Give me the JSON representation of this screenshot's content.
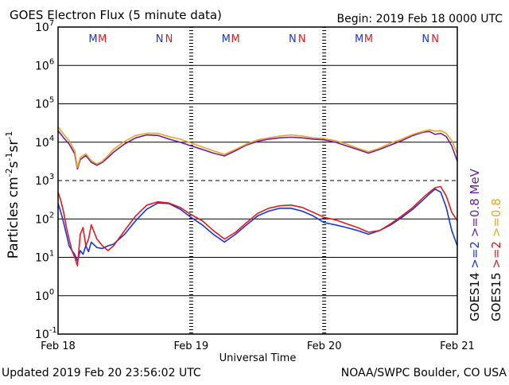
{
  "chart_data": {
    "type": "line",
    "title": "GOES Electron Flux (5 minute data)",
    "begin_label": "Begin: 2019 Feb 18 0000 UTC",
    "updated_label": "Updated 2019 Feb 20 23:56:02 UTC",
    "credit_label": "NOAA/SWPC Boulder, CO USA",
    "xlabel": "Universal Time",
    "ylabel_parts": [
      "Particles cm",
      "-2",
      "s",
      "-1",
      "sr",
      "-1"
    ],
    "xlim": [
      0,
      72
    ],
    "ylim_log10": [
      -1,
      7
    ],
    "y_scale": "log",
    "y_ticks": [
      {
        "exp": 7,
        "base": "10",
        "sup": "7"
      },
      {
        "exp": 6,
        "base": "10",
        "sup": "6"
      },
      {
        "exp": 5,
        "base": "10",
        "sup": "5"
      },
      {
        "exp": 4,
        "base": "10",
        "sup": "4"
      },
      {
        "exp": 3,
        "base": "10",
        "sup": "3"
      },
      {
        "exp": 2,
        "base": "10",
        "sup": "2"
      },
      {
        "exp": 1,
        "base": "10",
        "sup": "1"
      },
      {
        "exp": 0,
        "base": "10",
        "sup": "0"
      },
      {
        "exp": -1,
        "base": "10",
        "sup": "-1"
      }
    ],
    "x_ticks": [
      {
        "hour": 0,
        "label": "Feb 18"
      },
      {
        "hour": 24,
        "label": "Feb 19"
      },
      {
        "hour": 48,
        "label": "Feb 20"
      },
      {
        "hour": 72,
        "label": "Feb 21"
      }
    ],
    "gridlines_log10": [
      6,
      5,
      4,
      2,
      1,
      0
    ],
    "dashed_threshold_log10": 3,
    "markers": [
      {
        "hour": 6.3,
        "label": "M",
        "color": "#1a33e6"
      },
      {
        "hour": 8.0,
        "label": "M",
        "color": "#e61a1a"
      },
      {
        "hour": 18.3,
        "label": "N",
        "color": "#1a33e6"
      },
      {
        "hour": 20.0,
        "label": "N",
        "color": "#e61a1a"
      },
      {
        "hour": 30.3,
        "label": "M",
        "color": "#1a33e6"
      },
      {
        "hour": 32.0,
        "label": "M",
        "color": "#e61a1a"
      },
      {
        "hour": 42.3,
        "label": "N",
        "color": "#1a33e6"
      },
      {
        "hour": 44.0,
        "label": "N",
        "color": "#e61a1a"
      },
      {
        "hour": 54.3,
        "label": "M",
        "color": "#1a33e6"
      },
      {
        "hour": 56.0,
        "label": "M",
        "color": "#e61a1a"
      },
      {
        "hour": 66.3,
        "label": "N",
        "color": "#1a33e6"
      },
      {
        "hour": 68.0,
        "label": "N",
        "color": "#e61a1a"
      }
    ],
    "legend": {
      "goes14": {
        "label": "GOES14",
        "high": ">=2",
        "low": ">=0.8",
        "unit": "MeV"
      },
      "goes15": {
        "label": "GOES15",
        "high": ">=2",
        "low": ">=0.8",
        "unit": "MeV"
      },
      "colors": {
        "label": "#000000",
        "high14": "#1a33e6",
        "high15": "#e61a1a",
        "low14": "#6a1fa8",
        "low15": "#f2a21b",
        "unit": "#6a1fa8"
      }
    },
    "series": [
      {
        "name": "GOES14 >=0.8 MeV",
        "color": "#6a1fa8",
        "x": [
          0,
          1,
          2,
          3,
          3.5,
          4,
          5,
          6,
          7,
          8,
          9,
          10,
          12,
          14,
          16,
          18,
          20,
          22,
          24,
          26,
          28,
          30,
          32,
          34,
          36,
          38,
          40,
          42,
          44,
          46,
          48,
          50,
          52,
          54,
          56,
          58,
          60,
          62,
          64,
          66,
          67,
          68,
          69,
          70,
          71,
          72
        ],
        "values": [
          20000,
          13000,
          9000,
          5000,
          2000,
          3500,
          4500,
          3000,
          2500,
          3000,
          4000,
          5500,
          9000,
          13000,
          15500,
          15000,
          12000,
          10000,
          8000,
          6500,
          5200,
          4400,
          6000,
          8500,
          10500,
          12000,
          13000,
          13500,
          13000,
          12000,
          11500,
          10000,
          8000,
          6500,
          5200,
          6500,
          8500,
          11000,
          15000,
          18500,
          19000,
          16000,
          17000,
          14000,
          8000,
          3200
        ]
      },
      {
        "name": "GOES15 >=0.8 MeV",
        "color": "#f2a21b",
        "x": [
          0,
          1,
          2,
          3,
          3.5,
          4,
          5,
          6,
          7,
          8,
          9,
          10,
          12,
          14,
          16,
          18,
          20,
          22,
          24,
          26,
          28,
          30,
          32,
          34,
          36,
          38,
          40,
          42,
          44,
          46,
          48,
          50,
          52,
          54,
          56,
          58,
          60,
          62,
          64,
          66,
          67,
          68,
          69,
          70,
          71,
          72
        ],
        "values": [
          25000,
          16000,
          11000,
          6000,
          2200,
          4000,
          5000,
          3300,
          2700,
          3200,
          4500,
          6500,
          10500,
          15000,
          17000,
          17000,
          14000,
          12000,
          9500,
          7500,
          6000,
          4800,
          6500,
          9000,
          11500,
          13000,
          14500,
          15500,
          14500,
          13000,
          12500,
          11000,
          9000,
          7000,
          5600,
          7000,
          9500,
          12000,
          16000,
          19500,
          21000,
          19500,
          20000,
          17000,
          11000,
          5000
        ]
      },
      {
        "name": "GOES14 >=2 MeV",
        "color": "#1a33e6",
        "x": [
          0,
          0.5,
          1,
          1.5,
          2,
          2.5,
          3,
          3.5,
          4,
          4.5,
          5,
          5.5,
          6,
          7,
          8,
          9,
          10,
          12,
          14,
          16,
          18,
          20,
          22,
          24,
          26,
          28,
          30,
          32,
          34,
          36,
          38,
          40,
          42,
          44,
          46,
          48,
          50,
          52,
          54,
          56,
          58,
          60,
          62,
          64,
          66,
          67,
          68,
          69,
          70,
          71,
          72
        ],
        "values": [
          250,
          150,
          80,
          40,
          20,
          15,
          12,
          8,
          15,
          12,
          20,
          14,
          25,
          18,
          17,
          20,
          22,
          40,
          90,
          180,
          260,
          250,
          180,
          110,
          70,
          40,
          25,
          40,
          70,
          120,
          160,
          190,
          190,
          160,
          120,
          80,
          70,
          60,
          50,
          40,
          50,
          70,
          110,
          180,
          330,
          450,
          600,
          500,
          200,
          50,
          20
        ]
      },
      {
        "name": "GOES15 >=2 MeV",
        "color": "#e61a1a",
        "x": [
          0,
          0.5,
          1,
          1.5,
          2,
          2.5,
          3,
          3.5,
          4,
          4.5,
          5,
          5.5,
          6,
          7,
          8,
          9,
          10,
          12,
          14,
          16,
          18,
          20,
          22,
          24,
          26,
          28,
          30,
          32,
          34,
          36,
          38,
          40,
          42,
          44,
          46,
          48,
          50,
          52,
          54,
          56,
          58,
          60,
          62,
          64,
          66,
          67,
          68,
          69,
          70,
          71,
          72
        ],
        "values": [
          500,
          300,
          150,
          60,
          30,
          15,
          10,
          6,
          40,
          60,
          20,
          30,
          70,
          30,
          20,
          15,
          20,
          50,
          120,
          230,
          280,
          260,
          200,
          130,
          90,
          50,
          30,
          45,
          80,
          140,
          190,
          220,
          230,
          200,
          150,
          110,
          95,
          75,
          60,
          45,
          50,
          75,
          120,
          200,
          380,
          500,
          650,
          700,
          400,
          150,
          90
        ]
      }
    ]
  }
}
